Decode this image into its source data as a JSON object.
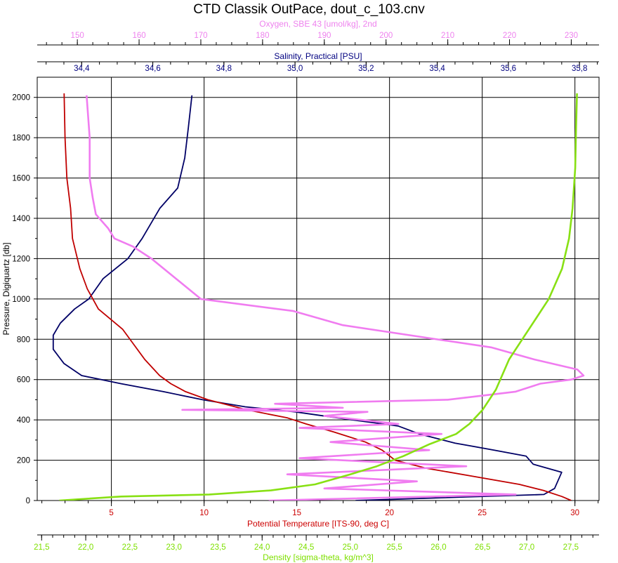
{
  "chart_data": {
    "type": "line",
    "title": "CTD Classik OutPace, dout_c_103.cnv",
    "grid": true,
    "y_axis": {
      "label": "Pressure, Digiquartz [db]",
      "range": [
        2100,
        0
      ],
      "ticks": [
        "0",
        "200",
        "400",
        "600",
        "800",
        "1000",
        "1200",
        "1400",
        "1600",
        "1800",
        "2000"
      ],
      "color": "#000000"
    },
    "x_axes": [
      {
        "id": "oxygen",
        "label": "Oxygen, SBE 43 [umol/kg], 2nd",
        "range": [
          143.5,
          234.5
        ],
        "ticks": [
          "150",
          "160",
          "170",
          "180",
          "190",
          "200",
          "210",
          "220",
          "230"
        ],
        "color": "#ee82ee"
      },
      {
        "id": "salinity",
        "label": "Salinity, Practical [PSU]",
        "range": [
          34.275,
          35.855
        ],
        "ticks": [
          "34,4",
          "34,6",
          "34,8",
          "35,0",
          "35,2",
          "35,4",
          "35,6",
          "35,8"
        ],
        "color": "#000080"
      },
      {
        "id": "temperature",
        "label": "Potential Temperature [ITS-90, deg C]",
        "range": [
          1.0,
          31.3
        ],
        "ticks": [
          "5",
          "10",
          "15",
          "20",
          "25",
          "30"
        ],
        "color": "#cc0000"
      },
      {
        "id": "density",
        "label": "Density [sigma-theta, kg/m^3]",
        "range": [
          21.45,
          27.82
        ],
        "ticks": [
          "21,5",
          "22,0",
          "22,5",
          "23,0",
          "23,5",
          "24,0",
          "24,5",
          "25,0",
          "25,5",
          "26,0",
          "26,5",
          "27,0",
          "27,5"
        ],
        "color": "#7ee000"
      }
    ],
    "series": [
      {
        "axis": "salinity",
        "color": "#000066",
        "x": [
          35.17,
          35.7,
          35.73,
          35.75,
          35.67,
          35.65,
          35.56,
          35.45,
          35.35,
          35.29,
          35.12,
          35.0,
          34.86,
          34.74,
          34.63,
          34.51,
          34.4,
          34.35,
          34.32,
          34.32,
          34.34,
          34.38,
          34.42,
          34.46,
          34.53,
          34.57,
          34.62,
          34.67,
          34.69,
          34.7,
          34.71
        ],
        "y": [
          0,
          30,
          60,
          140,
          180,
          220,
          250,
          285,
          330,
          370,
          410,
          440,
          465,
          500,
          540,
          580,
          620,
          680,
          750,
          820,
          880,
          950,
          1000,
          1100,
          1200,
          1300,
          1450,
          1550,
          1700,
          1850,
          2010
        ]
      },
      {
        "axis": "temperature",
        "color": "#c00000",
        "x": [
          29.8,
          29.3,
          28.3,
          27.0,
          24.5,
          22.0,
          20.3,
          19.6,
          18.7,
          17.0,
          15.5,
          14.5,
          12.3,
          10.2,
          9.0,
          8.2,
          7.6,
          6.8,
          5.6,
          4.3,
          3.7,
          3.3,
          2.9,
          2.8,
          2.6,
          2.5,
          2.45
        ],
        "y": [
          0,
          20,
          50,
          80,
          120,
          160,
          200,
          250,
          290,
          340,
          380,
          410,
          450,
          500,
          540,
          580,
          620,
          700,
          850,
          950,
          1050,
          1150,
          1300,
          1450,
          1600,
          1800,
          2020
        ]
      },
      {
        "axis": "oxygen",
        "color": "#f07cf0",
        "x": [
          181,
          221,
          190,
          205,
          184,
          213,
          186,
          207,
          191,
          209,
          186,
          202,
          190,
          197,
          167,
          193,
          182,
          210,
          221,
          225,
          230,
          232,
          231,
          224,
          217,
          206,
          193,
          185,
          170,
          166,
          162,
          159,
          156,
          155,
          153,
          152.5,
          152,
          152,
          151.5
        ],
        "y": [
          0,
          30,
          60,
          95,
          130,
          170,
          210,
          250,
          290,
          330,
          360,
          380,
          420,
          440,
          450,
          460,
          480,
          500,
          540,
          580,
          600,
          620,
          650,
          700,
          760,
          810,
          870,
          940,
          1000,
          1100,
          1200,
          1260,
          1300,
          1350,
          1420,
          1500,
          1600,
          1800,
          2010
        ]
      },
      {
        "axis": "density",
        "color": "#88e014",
        "x": [
          21.7,
          22.4,
          23.4,
          24.1,
          24.6,
          25.0,
          25.3,
          25.6,
          25.9,
          26.2,
          26.35,
          26.5,
          26.65,
          26.8,
          26.95,
          27.1,
          27.25,
          27.4,
          27.48,
          27.52,
          27.55,
          27.56,
          27.57
        ],
        "y": [
          0,
          20,
          30,
          50,
          80,
          130,
          170,
          220,
          280,
          330,
          380,
          450,
          550,
          700,
          800,
          900,
          1000,
          1150,
          1300,
          1450,
          1650,
          1850,
          2020
        ]
      }
    ]
  }
}
